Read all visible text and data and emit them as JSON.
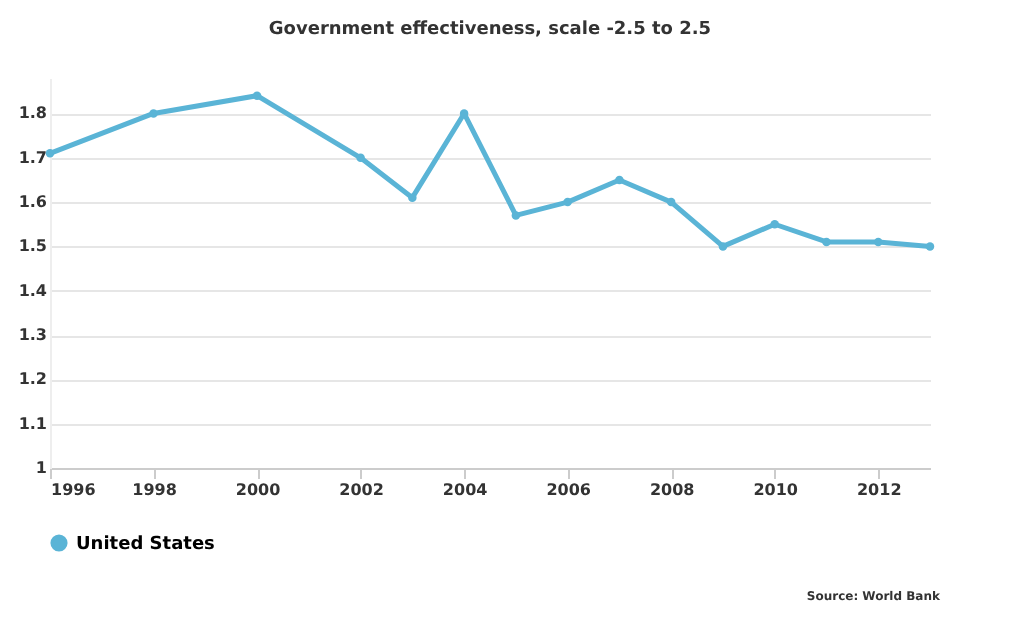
{
  "chart_data": {
    "type": "line",
    "title": "Government effectiveness, scale -2.5 to 2.5",
    "x": [
      1996,
      1998,
      2000,
      2002,
      2003,
      2004,
      2005,
      2006,
      2007,
      2008,
      2009,
      2010,
      2011,
      2012,
      2013
    ],
    "series": [
      {
        "name": "United States",
        "color": "#5ab4d6",
        "values": [
          1.71,
          1.8,
          1.84,
          1.7,
          1.61,
          1.8,
          1.57,
          1.6,
          1.65,
          1.6,
          1.5,
          1.55,
          1.51,
          1.51,
          1.5
        ]
      }
    ],
    "xlim": [
      1996,
      2013
    ],
    "xticks": [
      1996,
      1998,
      2000,
      2002,
      2004,
      2006,
      2008,
      2010,
      2012
    ],
    "ylim": [
      1,
      1.88
    ],
    "yticks": [
      {
        "value": 1,
        "label": "1"
      },
      1.1,
      1.2,
      1.3,
      1.4,
      1.5,
      1.6,
      1.7,
      1.8
    ],
    "grid": "y",
    "legend": "bottom left",
    "marker": "circle",
    "line_style": "solid",
    "annotations": [
      "Source: World Bank"
    ]
  }
}
